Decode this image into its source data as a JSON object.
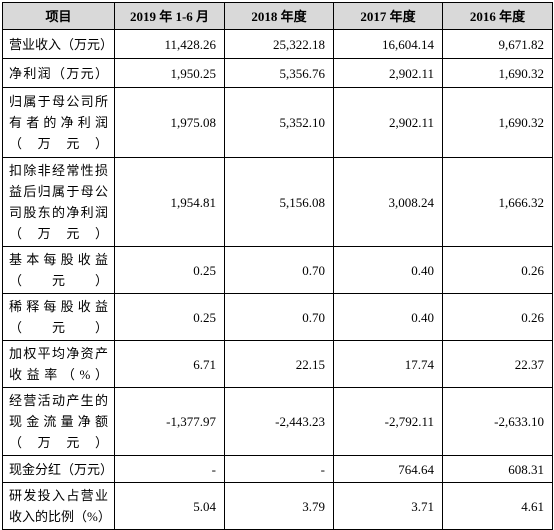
{
  "headers": [
    "项目",
    "2019 年 1-6 月",
    "2018 年度",
    "2017 年度",
    "2016 年度"
  ],
  "rows": [
    {
      "label": "营业收入（万元）",
      "values": [
        "11,428.26",
        "25,322.18",
        "16,604.14",
        "9,671.82"
      ]
    },
    {
      "label": "净利润（万元）",
      "values": [
        "1,950.25",
        "5,356.76",
        "2,902.11",
        "1,690.32"
      ]
    },
    {
      "label": "归属于母公司所有者的净利润（万元）",
      "values": [
        "1,975.08",
        "5,352.10",
        "2,902.11",
        "1,690.32"
      ]
    },
    {
      "label": "扣除非经常性损益后归属于母公司股东的净利润（万元）",
      "values": [
        "1,954.81",
        "5,156.08",
        "3,008.24",
        "1,666.32"
      ]
    },
    {
      "label": "基本每股收益（元）",
      "values": [
        "0.25",
        "0.70",
        "0.40",
        "0.26"
      ]
    },
    {
      "label": "稀释每股收益（元）",
      "values": [
        "0.25",
        "0.70",
        "0.40",
        "0.26"
      ]
    },
    {
      "label": "加权平均净资产收益率（%）",
      "values": [
        "6.71",
        "22.15",
        "17.74",
        "22.37"
      ]
    },
    {
      "label": "经营活动产生的现金流量净额（万元）",
      "values": [
        "-1,377.97",
        "-2,443.23",
        "-2,792.11",
        "-2,633.10"
      ]
    },
    {
      "label": "现金分红（万元）",
      "values": [
        "-",
        "-",
        "764.64",
        "608.31"
      ]
    },
    {
      "label": "研发投入占营业收入的比例（%）",
      "values": [
        "5.04",
        "3.79",
        "3.71",
        "4.61"
      ]
    }
  ]
}
